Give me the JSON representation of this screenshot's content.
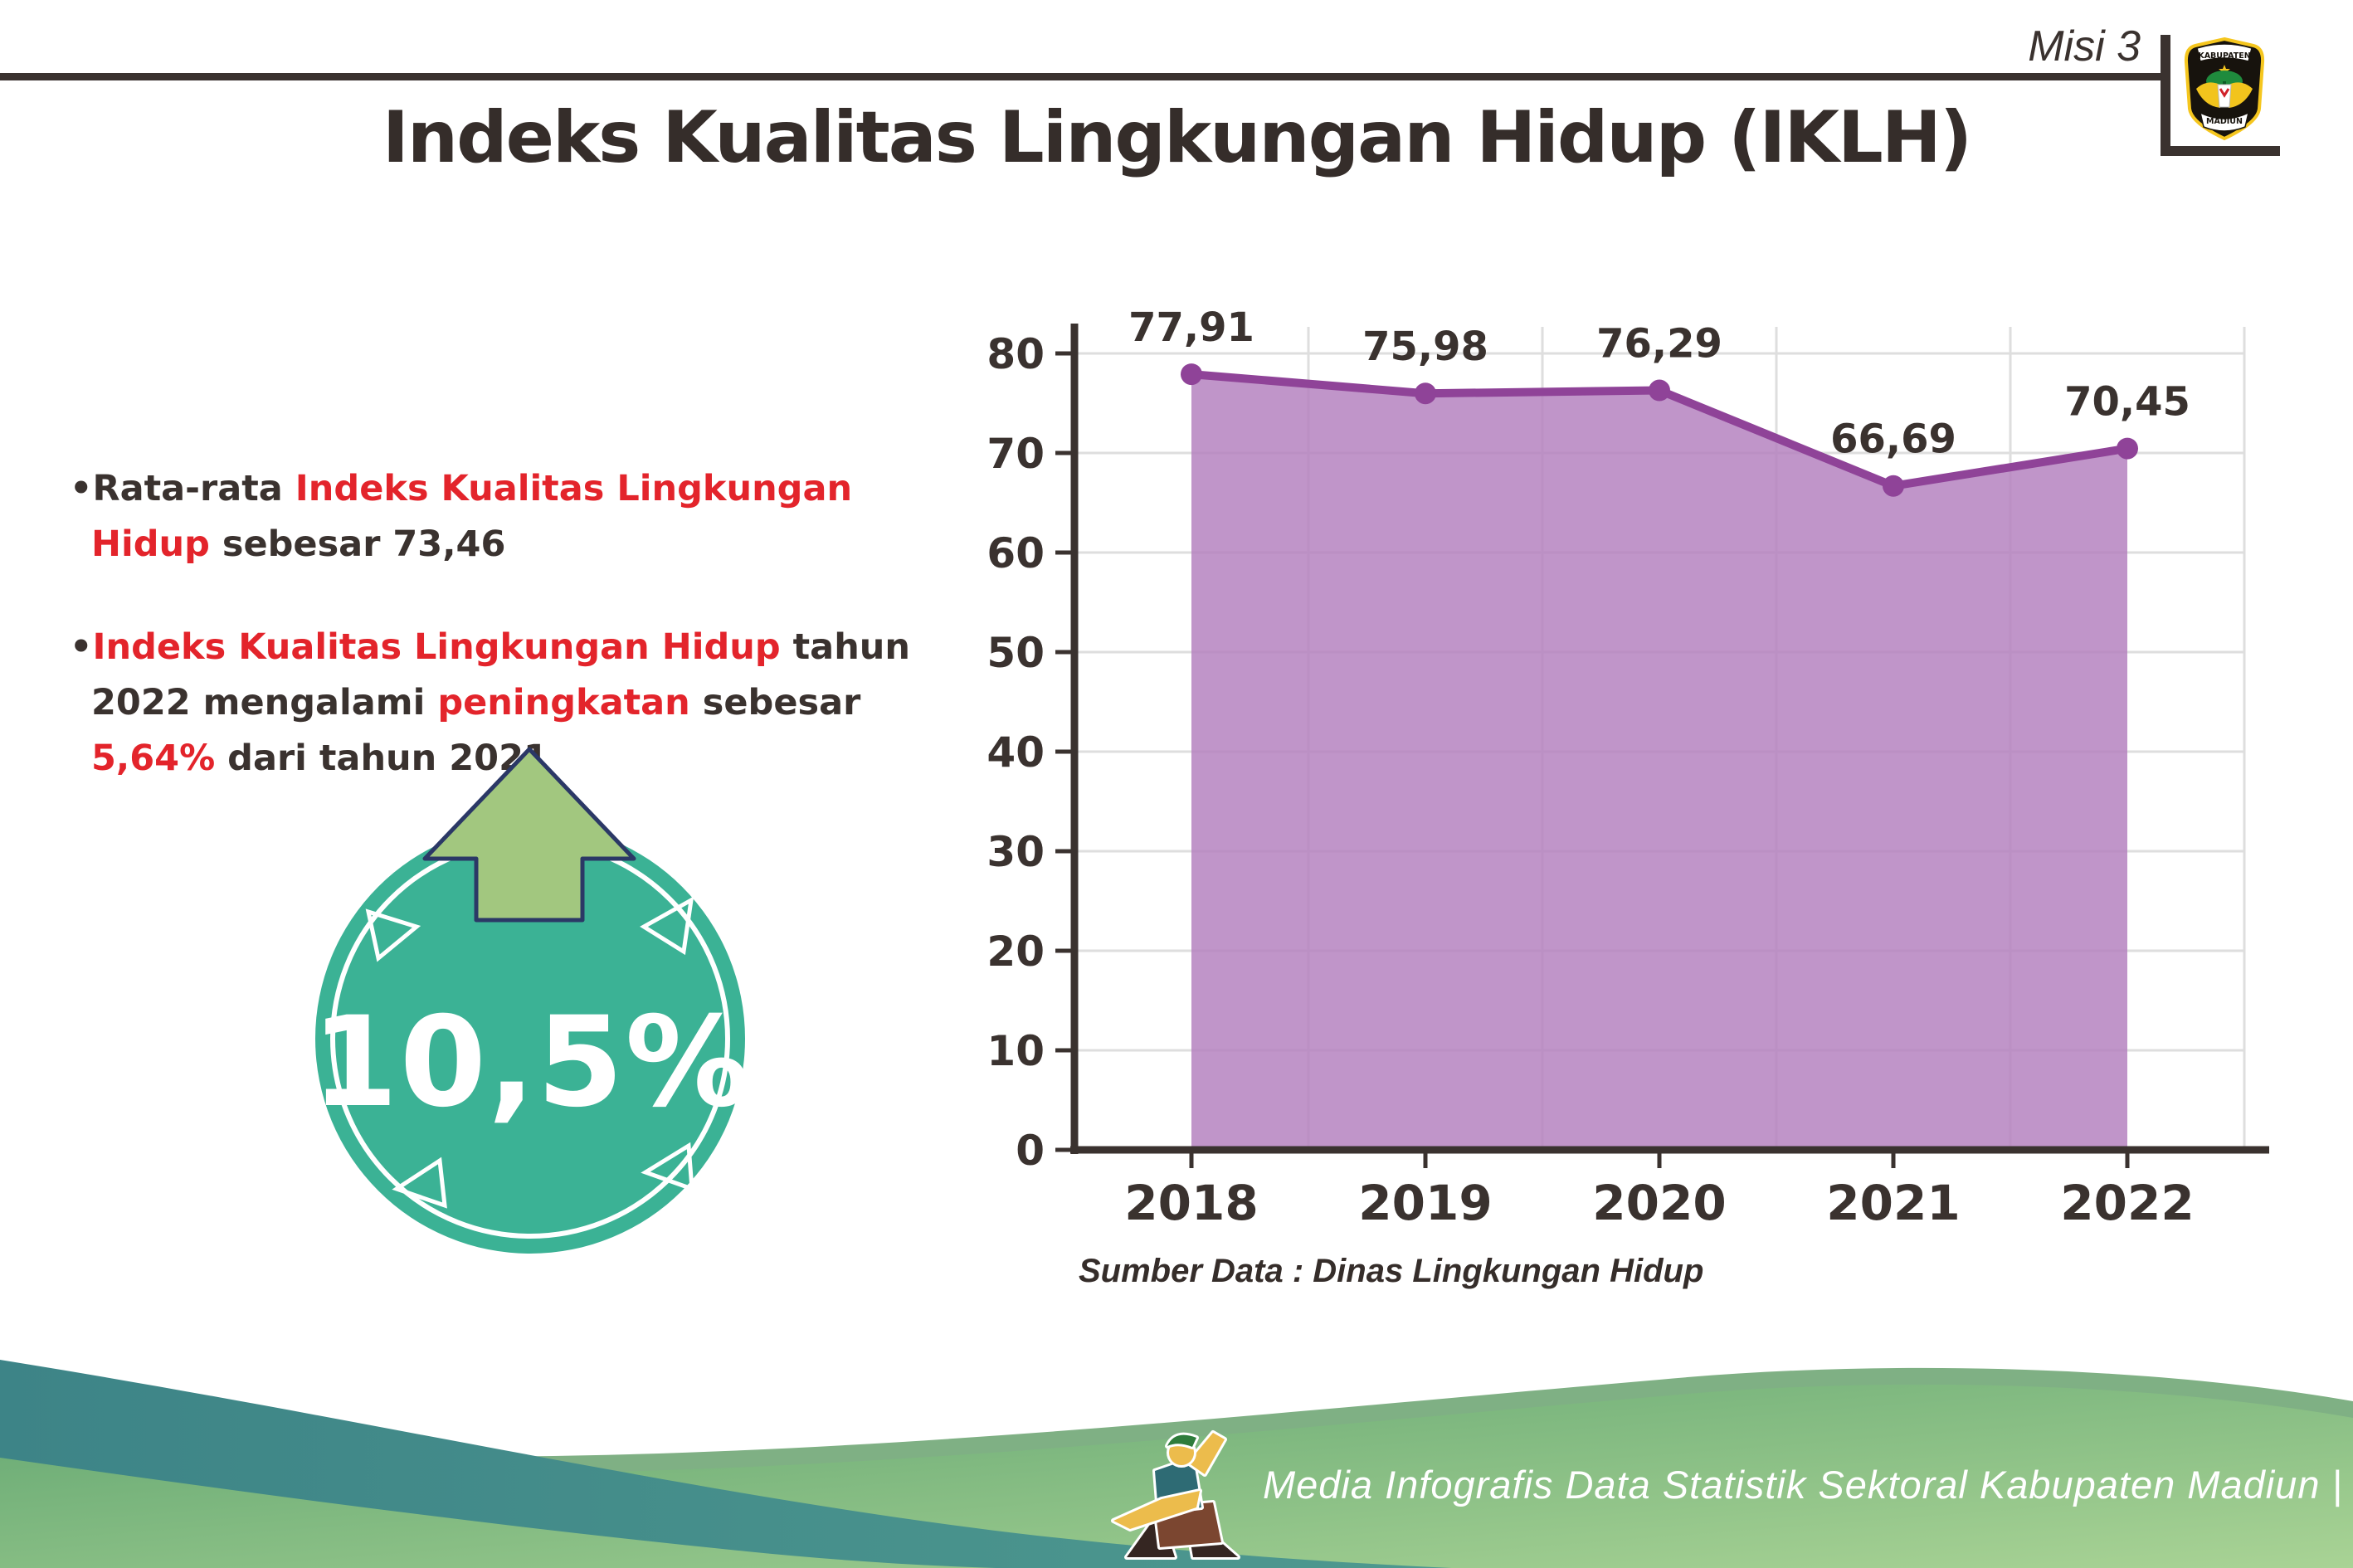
{
  "header": {
    "mission": "Misi 3",
    "title": "Indeks Kualitas Lingkungan Hidup (IKLH)",
    "logo_top": "KABUPATEN",
    "logo_bottom": "MADIUN"
  },
  "bullets": {
    "bullet_char": "•",
    "b1_p1": "Rata-rata ",
    "b1_red": "Indeks Kualitas Lingkungan Hidup",
    "b1_p2": " sebesar 73,46",
    "b2_red1": "Indeks Kualitas Lingkungan Hidup",
    "b2_p1": " tahun 2022 mengalami ",
    "b2_red2": "peningkatan",
    "b2_p2": " sebesar ",
    "b2_red3": "5,64%",
    "b2_p3": " dari tahun 2021"
  },
  "badge": {
    "value": "10,5%"
  },
  "chart_data": {
    "type": "area",
    "categories": [
      "2018",
      "2019",
      "2020",
      "2021",
      "2022"
    ],
    "values": [
      77.91,
      75.98,
      76.29,
      66.69,
      70.45
    ],
    "point_labels": [
      "77,91",
      "75,98",
      "76,29",
      "66,69",
      "70,45"
    ],
    "ylim": [
      0,
      80
    ],
    "yticks": [
      0,
      10,
      20,
      30,
      40,
      50,
      60,
      70,
      80
    ],
    "grid": true,
    "legend": "none",
    "line_color": "#8F4398",
    "fill_color": "#B583C0",
    "axis_color": "#3A322F",
    "grid_color": "#DEDEDE",
    "source_note": "Sumber Data : Dinas Lingkungan Hidup"
  },
  "footer": {
    "credit": "Media Infografis Data Statistik Sektoral Kabupaten Madiun |"
  },
  "colors": {
    "accent_red": "#E3242B",
    "dark_text": "#3A322F",
    "badge_teal": "#3BB295",
    "arrow_green": "#A2C77F",
    "arrow_outline": "#2B3866",
    "footer_teal": "#3D8487",
    "footer_band_green": "#7FB084",
    "footer_green_dark": "#62A671",
    "footer_green_light": "#A9D395"
  }
}
